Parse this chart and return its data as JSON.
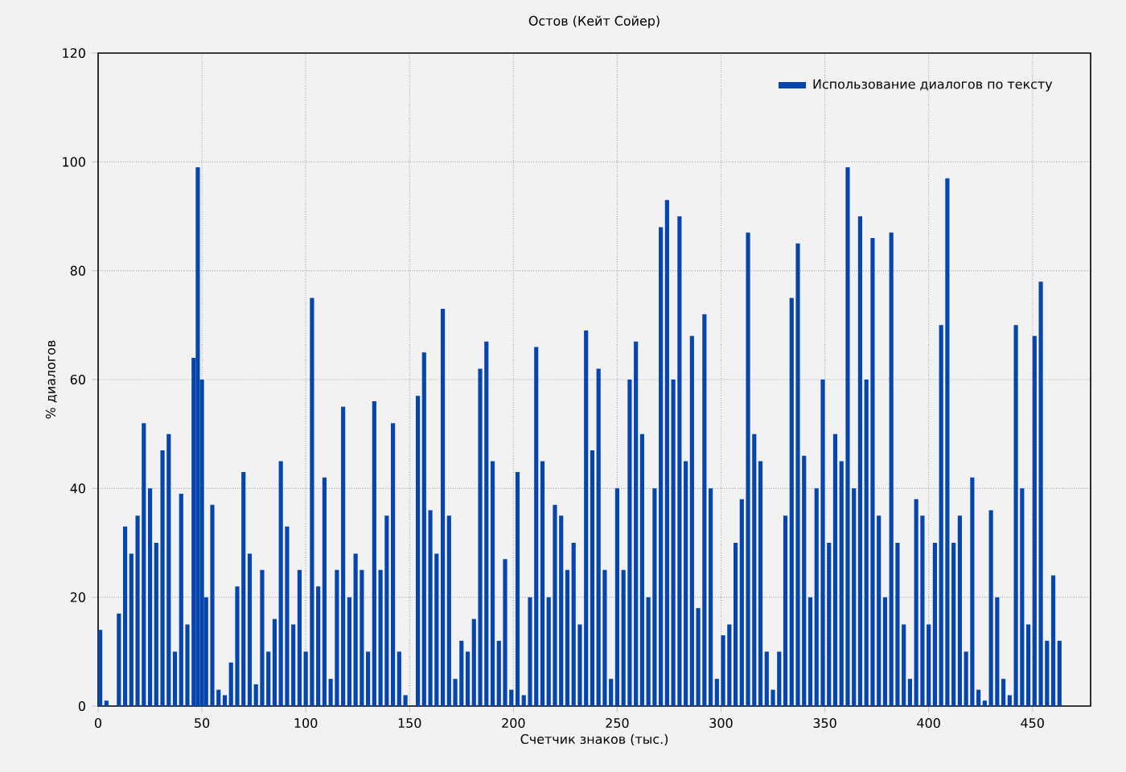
{
  "chart_data": {
    "type": "bar",
    "title": "Остов (Кейт Сойер)",
    "xlabel": "Счетчик знаков (тыс.)",
    "ylabel": "% диалогов",
    "x": [
      1,
      4,
      7,
      10,
      13,
      16,
      19,
      22,
      25,
      28,
      31,
      34,
      37,
      40,
      43,
      46,
      48,
      50,
      52,
      55,
      58,
      61,
      64,
      67,
      70,
      73,
      76,
      79,
      82,
      85,
      88,
      91,
      94,
      97,
      100,
      103,
      106,
      109,
      112,
      115,
      118,
      121,
      124,
      127,
      130,
      133,
      136,
      139,
      142,
      145,
      148,
      151,
      154,
      157,
      160,
      163,
      166,
      169,
      172,
      175,
      178,
      181,
      184,
      187,
      190,
      193,
      196,
      199,
      202,
      205,
      208,
      211,
      214,
      217,
      220,
      223,
      226,
      229,
      232,
      235,
      238,
      241,
      244,
      247,
      250,
      253,
      256,
      259,
      262,
      265,
      268,
      271,
      274,
      277,
      280,
      283,
      286,
      289,
      292,
      295,
      298,
      301,
      304,
      307,
      310,
      313,
      316,
      319,
      322,
      325,
      328,
      331,
      334,
      337,
      340,
      343,
      346,
      349,
      352,
      355,
      358,
      361,
      364,
      367,
      370,
      373,
      376,
      379,
      382,
      385,
      388,
      391,
      394,
      397,
      400,
      403,
      406,
      409,
      412,
      415,
      418,
      421,
      424,
      427,
      430,
      433,
      436,
      439,
      442,
      445,
      448,
      451,
      454,
      457,
      460,
      463
    ],
    "series": [
      {
        "name": "Использование диалогов по тексту",
        "color": "#0645ad",
        "values": [
          14,
          1,
          0,
          17,
          33,
          28,
          35,
          52,
          40,
          30,
          47,
          50,
          10,
          39,
          15,
          64,
          99,
          60,
          20,
          37,
          3,
          2,
          8,
          22,
          43,
          28,
          4,
          25,
          10,
          16,
          45,
          33,
          15,
          25,
          10,
          75,
          22,
          42,
          5,
          25,
          55,
          20,
          28,
          25,
          10,
          56,
          25,
          35,
          52,
          10,
          2,
          0,
          57,
          65,
          36,
          28,
          73,
          35,
          5,
          12,
          10,
          16,
          62,
          67,
          45,
          12,
          27,
          3,
          43,
          2,
          20,
          66,
          45,
          20,
          37,
          35,
          25,
          30,
          15,
          69,
          47,
          62,
          25,
          5,
          40,
          25,
          60,
          67,
          50,
          20,
          40,
          88,
          93,
          60,
          90,
          45,
          68,
          18,
          72,
          40,
          5,
          13,
          15,
          30,
          38,
          87,
          50,
          45,
          10,
          3,
          10,
          35,
          75,
          85,
          46,
          20,
          40,
          60,
          30,
          50,
          45,
          99,
          40,
          90,
          60,
          86,
          35,
          20,
          87,
          30,
          15,
          5,
          38,
          35,
          15,
          30,
          70,
          97,
          30,
          35,
          10,
          42,
          3,
          1,
          36,
          20,
          5,
          2,
          70,
          40,
          15,
          68,
          78,
          12,
          24,
          12
        ]
      }
    ],
    "xlim": [
      0,
      478
    ],
    "ylim": [
      0,
      120
    ],
    "xticks": [
      0,
      50,
      100,
      150,
      200,
      250,
      300,
      350,
      400,
      450
    ],
    "yticks": [
      0,
      20,
      40,
      60,
      80,
      100,
      120
    ],
    "grid": true,
    "legend": "top right"
  }
}
